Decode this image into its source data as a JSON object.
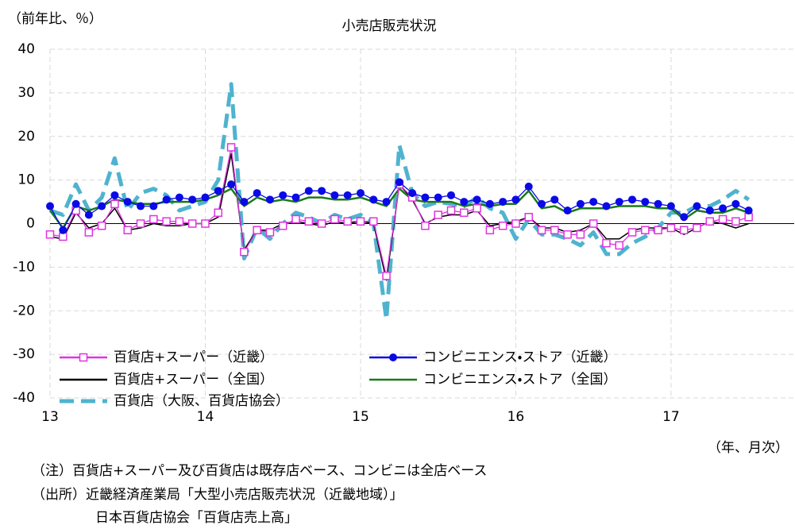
{
  "chart_data": {
    "type": "line",
    "title": "小売店販売状況",
    "y_label": "（前年比、％）",
    "x_label": "（年、月次）",
    "categories": [
      "13",
      null,
      null,
      null,
      null,
      null,
      null,
      null,
      null,
      null,
      null,
      null,
      "14",
      null,
      null,
      null,
      null,
      null,
      null,
      null,
      null,
      null,
      null,
      null,
      "15",
      null,
      null,
      null,
      null,
      null,
      null,
      null,
      null,
      null,
      null,
      null,
      "16",
      null,
      null,
      null,
      null,
      null,
      null,
      null,
      null,
      null,
      null,
      null,
      "17",
      null,
      null,
      null,
      null,
      null,
      null
    ],
    "ylim": [
      -40,
      40
    ],
    "yticks": [
      -40,
      -30,
      -20,
      -10,
      0,
      10,
      20,
      30,
      40
    ],
    "grid": true,
    "legend": "lower left",
    "series": [
      {
        "name": "百貨店+スーパー（近畿）",
        "color": "#e033e0",
        "marker": "square",
        "values": [
          -2.5,
          -3,
          3,
          -2,
          -0.5,
          4.5,
          -1.5,
          0,
          1,
          0.5,
          0.5,
          0,
          0,
          2.5,
          17.5,
          -6.5,
          -1.5,
          -2,
          -0.5,
          1,
          0.5,
          0,
          1,
          0.5,
          0.5,
          0.5,
          -12,
          9,
          6,
          -0.5,
          2,
          3,
          2.5,
          3.5,
          -1.5,
          -0.5,
          0,
          1.5,
          -1.5,
          -1.5,
          -2.5,
          -2.5,
          0,
          -4.5,
          -5,
          -2,
          -1.5,
          -1.5,
          -1,
          -1.5,
          -1,
          0.5,
          1,
          0.5,
          1.5
        ]
      },
      {
        "name": "コンビニエンス・ストア（近畿）",
        "color": "#0a0ae6",
        "marker": "circle",
        "values": [
          4,
          -1.5,
          4.5,
          2,
          4,
          6.5,
          5,
          4,
          4,
          5.5,
          6,
          5.5,
          6,
          7.5,
          9,
          5,
          7,
          5.5,
          6.5,
          6,
          7.5,
          7.5,
          6.5,
          6.5,
          7,
          5.5,
          5,
          9.5,
          7,
          6,
          6,
          6.5,
          5,
          5.5,
          4.5,
          5,
          5.5,
          8.5,
          4.5,
          5.5,
          3,
          4.5,
          5,
          4,
          5,
          5.5,
          5,
          4.5,
          4,
          1.5,
          4,
          3,
          3.5,
          4.5,
          3
        ]
      },
      {
        "name": "百貨店+スーパー（全国）",
        "color": "#000000",
        "values": [
          -3,
          -3.5,
          2.5,
          -1,
          0,
          3.5,
          -1.5,
          -1,
          0,
          -0.5,
          -0.5,
          0,
          0,
          1.5,
          16,
          -6,
          -1.5,
          -1.5,
          0,
          0.5,
          0,
          -0.5,
          0.5,
          0,
          0.5,
          0,
          -13,
          9,
          5.5,
          0,
          1.5,
          2,
          2,
          3,
          -0.5,
          0,
          0.5,
          1.5,
          -1,
          -1,
          -2,
          -1.5,
          0,
          -3.5,
          -3.5,
          -1.5,
          -1,
          -1,
          -1,
          -2.5,
          -1,
          0.5,
          0,
          -1,
          0
        ]
      },
      {
        "name": "コンビニエンス・ストア（全国）",
        "color": "#1a7a1a",
        "values": [
          3,
          -1,
          4,
          3,
          4,
          5.5,
          5,
          4.5,
          4.5,
          5,
          5,
          5,
          5.5,
          6.5,
          8,
          4,
          6,
          5,
          5.5,
          5,
          6,
          6,
          5.5,
          5.5,
          6,
          5,
          4,
          8,
          5.5,
          5,
          5,
          5,
          4,
          4.5,
          4,
          4.5,
          4.5,
          7.5,
          3.5,
          4,
          2.5,
          3.5,
          3.5,
          3.5,
          4,
          4,
          4,
          3.5,
          3.5,
          1,
          3,
          2.5,
          2.5,
          3.5,
          2.5
        ]
      },
      {
        "name": "百貨店（大阪、百貨店協会）",
        "color": "#4fb3cf",
        "dashed": true,
        "values": [
          3,
          2,
          9,
          3,
          6,
          15,
          3,
          7,
          8,
          6.5,
          3,
          4,
          5,
          10,
          32,
          -8,
          -1,
          -3.5,
          0,
          2.5,
          1.5,
          0,
          2,
          1,
          2,
          0,
          -22,
          18,
          7,
          4,
          5,
          4.5,
          4,
          6,
          3.5,
          2.5,
          -3.5,
          1,
          -2.5,
          -2.5,
          -3.5,
          -5,
          -2,
          -7,
          -7,
          -4.5,
          -3,
          -1,
          2.5,
          2.5,
          4,
          4,
          5.5,
          7.5,
          5.5
        ]
      }
    ],
    "notes": [
      "（注）百貨店+スーパー及び百貨店は既存店ベース、コンビニは全店ベース",
      "（出所）近畿経済産業局「大型小売店販売状況（近畿地域）」",
      "日本百貨店協会「百貨店売上高」"
    ]
  }
}
